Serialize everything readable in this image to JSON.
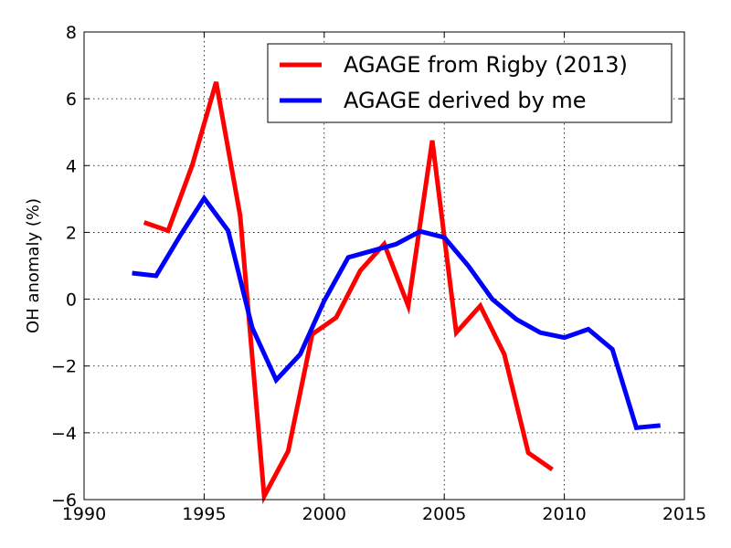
{
  "chart_data": {
    "type": "line",
    "title": "",
    "xlabel": "",
    "ylabel": "OH anomaly (%)",
    "xlim": [
      1990,
      2015
    ],
    "ylim": [
      -6,
      8
    ],
    "x_ticks": [
      1990,
      1995,
      2000,
      2005,
      2010,
      2015
    ],
    "y_ticks": [
      -6,
      -4,
      -2,
      0,
      2,
      4,
      6,
      8
    ],
    "y_tick_labels": [
      "−6",
      "−4",
      "−2",
      "0",
      "2",
      "4",
      "6",
      "8"
    ],
    "grid": true,
    "legend_position": "top-right",
    "series": [
      {
        "name": "AGAGE from Rigby (2013)",
        "color": "#ff0000",
        "x": [
          1992.5,
          1993.5,
          1994.5,
          1995.5,
          1996.5,
          1997.5,
          1998.5,
          1999.5,
          2000.5,
          2001.5,
          2002.5,
          2003.5,
          2004.5,
          2005.5,
          2006.5,
          2007.5,
          2008.5,
          2009.5
        ],
        "y": [
          2.3,
          2.05,
          4.0,
          6.5,
          2.5,
          -5.9,
          -4.55,
          -1.05,
          -0.55,
          0.85,
          1.65,
          -0.2,
          4.75,
          -1.0,
          -0.2,
          -1.65,
          -4.6,
          -5.1
        ]
      },
      {
        "name": "AGAGE derived by me",
        "color": "#0000ff",
        "x": [
          1992,
          1993,
          1994,
          1995,
          1996,
          1997,
          1998,
          1999,
          2000,
          2001,
          2002,
          2003,
          2004,
          2005,
          2006,
          2007,
          2008,
          2009,
          2010,
          2011,
          2012,
          2013,
          2014
        ],
        "y": [
          0.78,
          0.7,
          1.9,
          3.02,
          2.05,
          -0.85,
          -2.42,
          -1.65,
          -0.05,
          1.25,
          1.45,
          1.65,
          2.03,
          1.85,
          1.0,
          0.0,
          -0.6,
          -1.0,
          -1.15,
          -0.9,
          -1.5,
          -3.85,
          -3.78
        ]
      }
    ]
  }
}
